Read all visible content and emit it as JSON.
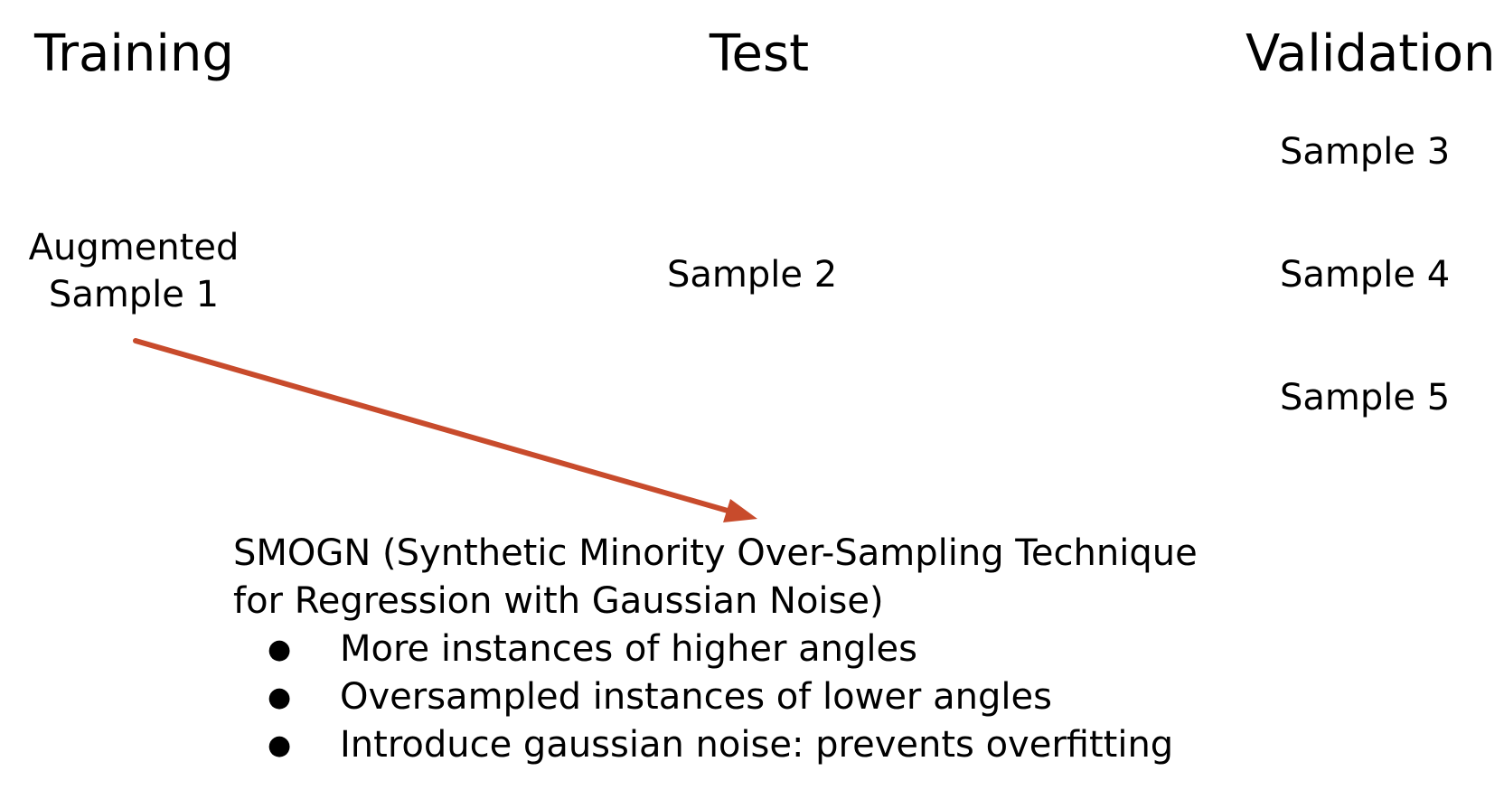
{
  "columns": {
    "training": "Training",
    "test": "Test",
    "validation": "Validation"
  },
  "training": {
    "line1": "Augmented",
    "line2": "Sample 1"
  },
  "test": {
    "sample": "Sample 2"
  },
  "validation": {
    "samples": [
      "Sample 3",
      "Sample 4",
      "Sample 5"
    ]
  },
  "arrow_color": "#c84b2c",
  "smogn": {
    "title_line1": "SMOGN (Synthetic Minority Over-Sampling Technique",
    "title_line2": "for Regression with Gaussian Noise)",
    "bullet_glyph": "●",
    "bullets": [
      "More instances of higher angles",
      "Oversampled instances of lower angles",
      "Introduce gaussian noise: prevents overfitting"
    ]
  }
}
